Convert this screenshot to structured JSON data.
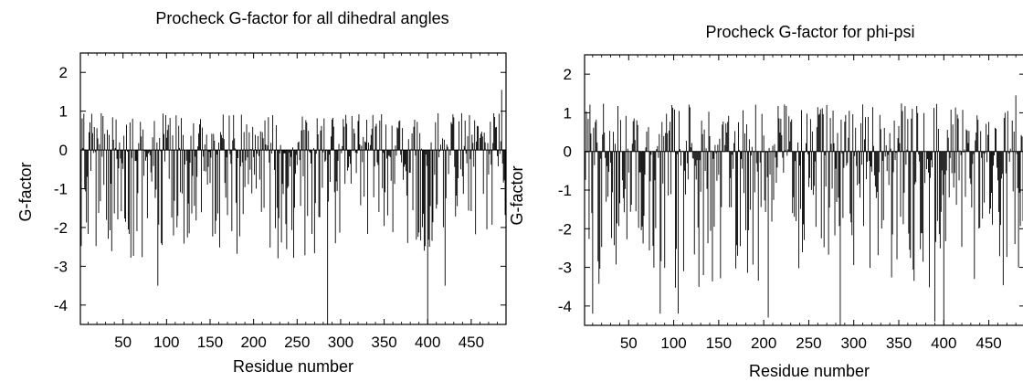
{
  "chart_data": [
    {
      "type": "bar",
      "title": "Procheck G-factor for all dihedral angles",
      "xlabel": "Residue number",
      "ylabel": "G-factor",
      "xlim": [
        1,
        490
      ],
      "ylim": [
        -4.5,
        2.5
      ],
      "xticks": [
        50,
        100,
        150,
        200,
        250,
        300,
        350,
        400,
        450
      ],
      "yticks": [
        2,
        1,
        0,
        -1,
        -2,
        -3,
        -4
      ],
      "grid": false,
      "bar_color": "#000000",
      "notable_points": [
        {
          "x": 90,
          "y": -3.5
        },
        {
          "x": 285,
          "y": -4.5
        },
        {
          "x": 400,
          "y": -4.5
        },
        {
          "x": 420,
          "y": -3.5
        },
        {
          "x": 485,
          "y": 1.55
        }
      ]
    },
    {
      "type": "bar",
      "title": "Procheck G-factor for phi-psi",
      "xlabel": "Residue number",
      "ylabel": "G-factor",
      "xlim": [
        1,
        490
      ],
      "ylim": [
        -4.5,
        2.5
      ],
      "xticks": [
        50,
        100,
        150,
        200,
        250,
        300,
        350,
        400,
        450
      ],
      "yticks": [
        2,
        1,
        0,
        -1,
        -2,
        -3,
        -4
      ],
      "grid": false,
      "bar_color": "#000000",
      "notable_points": [
        {
          "x": 10,
          "y": -4.2
        },
        {
          "x": 85,
          "y": -4.2
        },
        {
          "x": 105,
          "y": -4.2
        },
        {
          "x": 205,
          "y": -4.3
        },
        {
          "x": 285,
          "y": -4.5
        },
        {
          "x": 390,
          "y": -4.4
        },
        {
          "x": 400,
          "y": -4.5
        },
        {
          "x": 480,
          "y": 1.45
        }
      ]
    }
  ]
}
